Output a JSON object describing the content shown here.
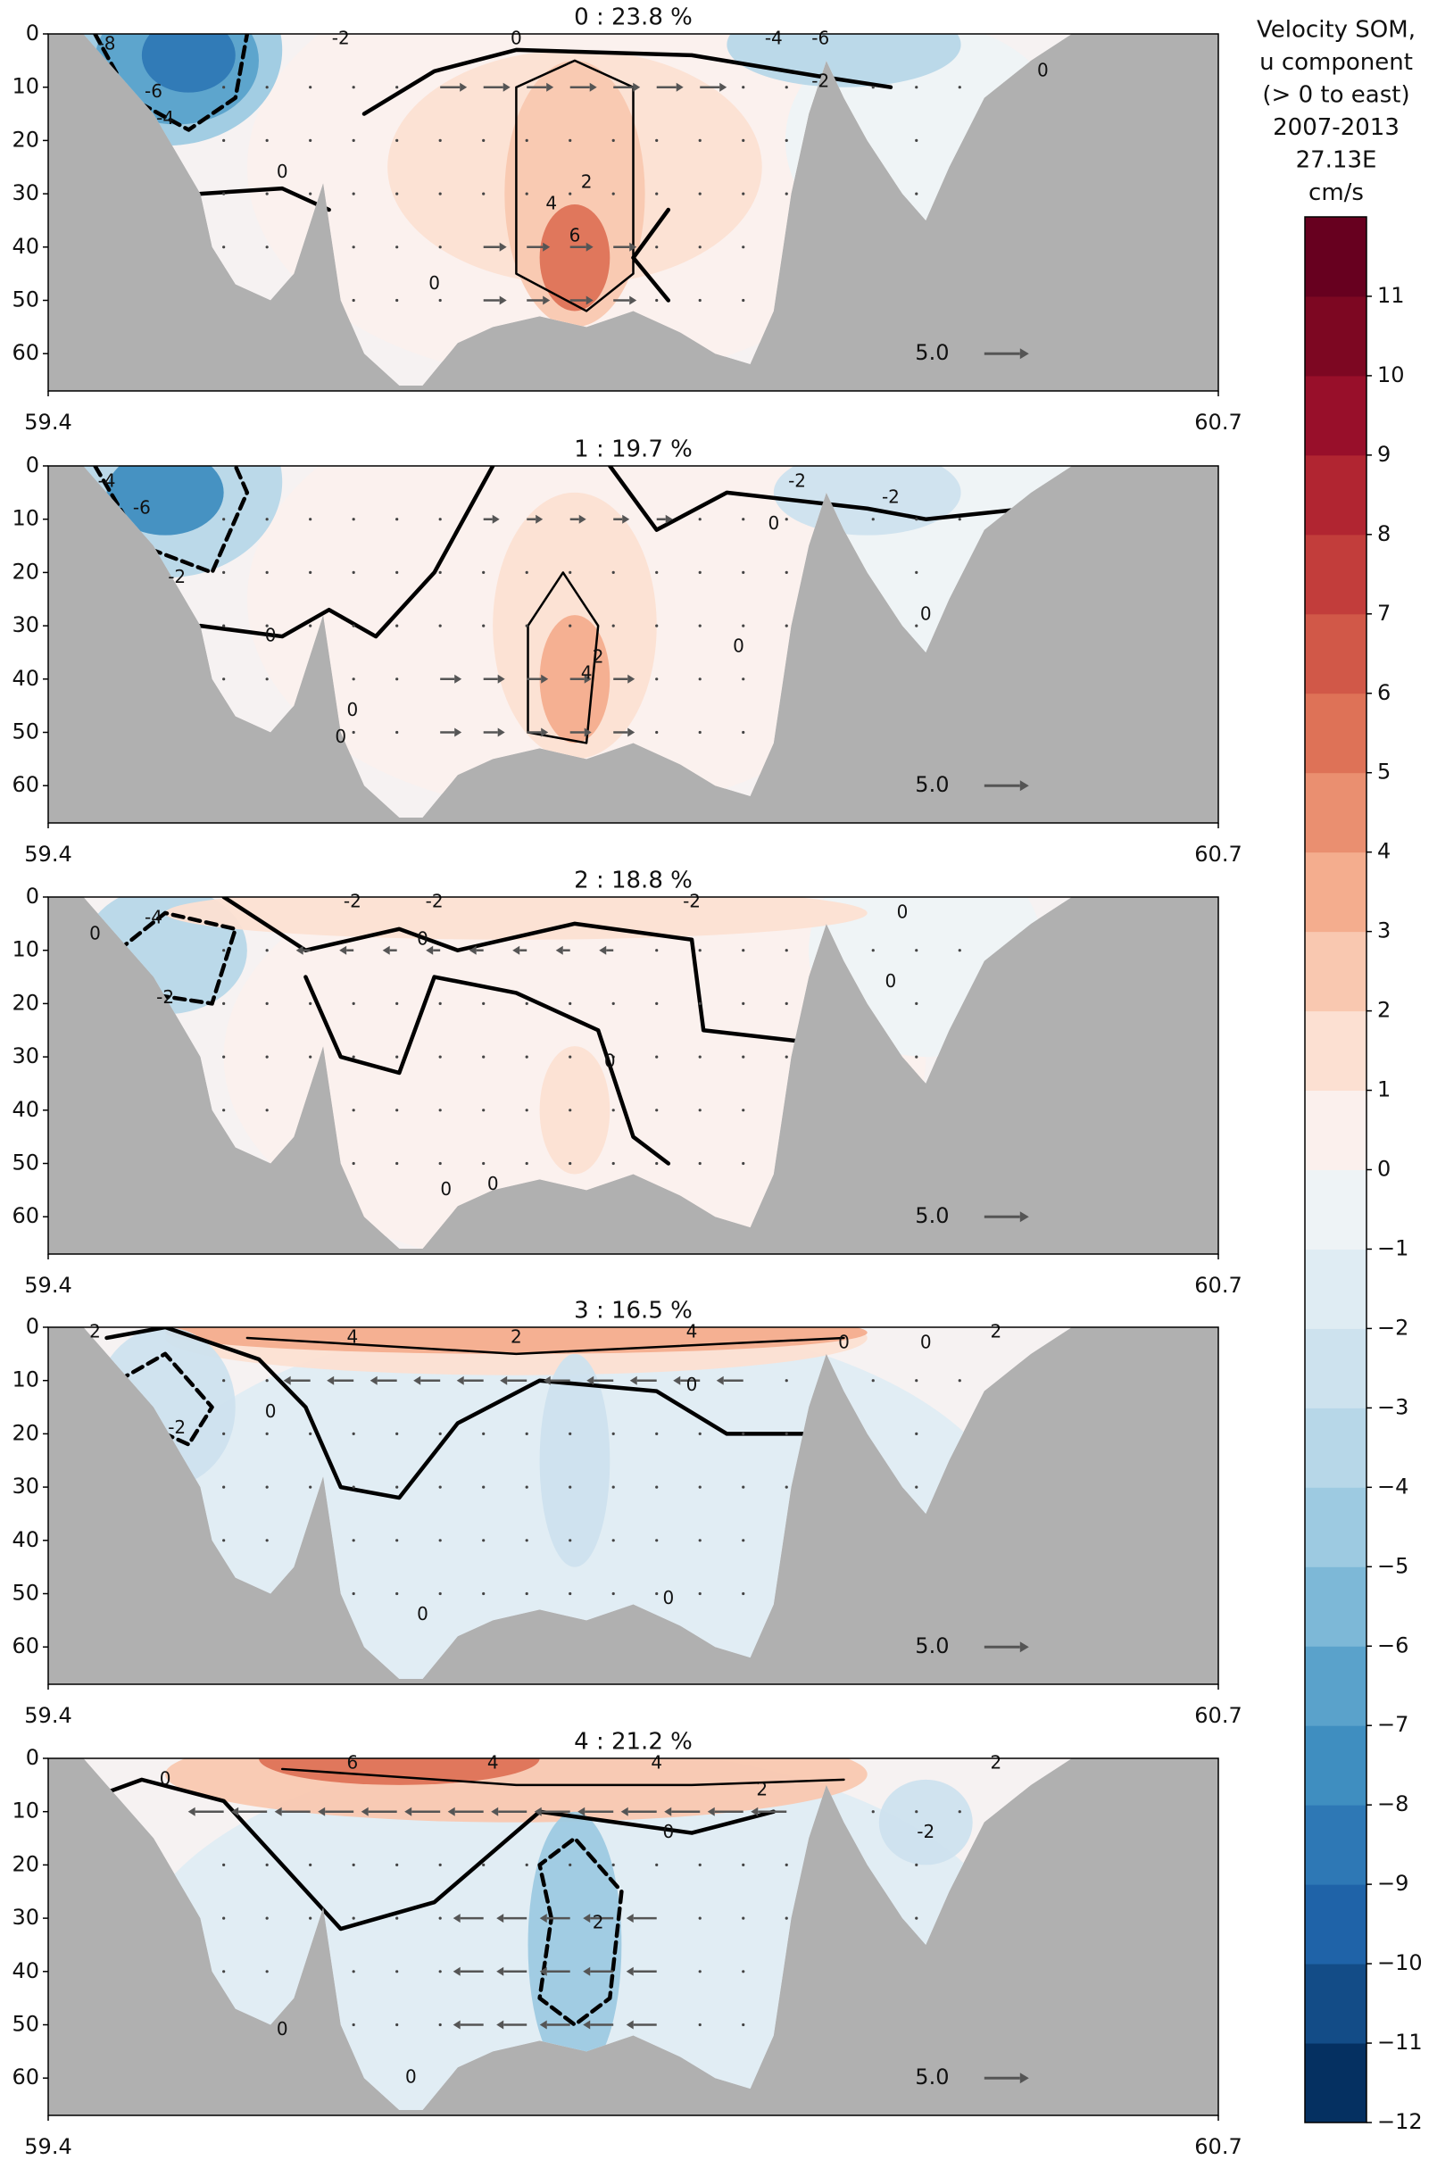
{
  "chart_data": [
    {
      "type": "contour",
      "title": "0 : 23.8 %",
      "xlim": [
        59.4,
        60.7
      ],
      "xticks": [
        59.4,
        60.7
      ],
      "ylim": [
        67,
        0
      ],
      "yticks": [
        0,
        10,
        20,
        30,
        40,
        50,
        60
      ],
      "contour_labels": [
        -8,
        -6,
        -4,
        -2,
        0,
        -4,
        -6,
        -2,
        0,
        2,
        4,
        6,
        0,
        0
      ],
      "reference_arrow": {
        "value": 5,
        "label": "5.0"
      }
    },
    {
      "type": "contour",
      "title": "1 : 19.7 %",
      "xlim": [
        59.4,
        60.7
      ],
      "xticks": [
        59.4,
        60.7
      ],
      "ylim": [
        67,
        0
      ],
      "yticks": [
        0,
        10,
        20,
        30,
        40,
        50,
        60
      ],
      "contour_labels": [
        -4,
        -6,
        -2,
        0,
        -2,
        -2,
        0,
        0,
        2,
        4,
        0,
        0,
        0
      ],
      "reference_arrow": {
        "value": 5,
        "label": "5.0"
      }
    },
    {
      "type": "contour",
      "title": "2 : 18.8 %",
      "xlim": [
        59.4,
        60.7
      ],
      "xticks": [
        59.4,
        60.7
      ],
      "ylim": [
        67,
        0
      ],
      "yticks": [
        0,
        10,
        20,
        30,
        40,
        50,
        60
      ],
      "contour_labels": [
        0,
        -4,
        -2,
        -2,
        -2,
        -2,
        0,
        0,
        0,
        0,
        0,
        0
      ],
      "reference_arrow": {
        "value": 5,
        "label": "5.0"
      }
    },
    {
      "type": "contour",
      "title": "3 : 16.5 %",
      "xlim": [
        59.4,
        60.7
      ],
      "xticks": [
        59.4,
        60.7
      ],
      "ylim": [
        67,
        0
      ],
      "yticks": [
        0,
        10,
        20,
        30,
        40,
        50,
        60
      ],
      "contour_labels": [
        2,
        4,
        2,
        4,
        0,
        -2,
        0,
        0,
        0,
        2,
        0,
        0
      ],
      "reference_arrow": {
        "value": 5,
        "label": "5.0"
      }
    },
    {
      "type": "contour",
      "title": "4 : 21.2 %",
      "xlim": [
        59.4,
        60.7
      ],
      "xticks": [
        59.4,
        60.7
      ],
      "ylim": [
        67,
        0
      ],
      "yticks": [
        0,
        10,
        20,
        30,
        40,
        50,
        60
      ],
      "contour_labels": [
        0,
        6,
        4,
        4,
        2,
        0,
        2,
        -2,
        2,
        0,
        0
      ],
      "reference_arrow": {
        "value": 5,
        "label": "5.0"
      }
    },
    {
      "type": "colorbar",
      "title": [
        "Velocity SOM,",
        "u component",
        "(> 0 to east)",
        "2007-2013",
        "27.13E",
        "cm/s"
      ],
      "ylim": [
        -12,
        12
      ],
      "yticks": [
        {
          "value": -12,
          "label": "−12"
        },
        {
          "value": -11,
          "label": "−11"
        },
        {
          "value": -10,
          "label": "−10"
        },
        {
          "value": -9,
          "label": "−9"
        },
        {
          "value": -8,
          "label": "−8"
        },
        {
          "value": -7,
          "label": "−7"
        },
        {
          "value": -6,
          "label": "−6"
        },
        {
          "value": -5,
          "label": "−5"
        },
        {
          "value": -4,
          "label": "−4"
        },
        {
          "value": -3,
          "label": "−3"
        },
        {
          "value": -2,
          "label": "−2"
        },
        {
          "value": -1,
          "label": "−1"
        },
        0,
        1,
        2,
        3,
        4,
        5,
        6,
        7,
        8,
        9,
        10,
        11
      ],
      "colors": [
        "#053061",
        "#134c87",
        "#1f63a8",
        "#2e78b5",
        "#3f8ec0",
        "#5aa2cb",
        "#7db8d7",
        "#9dcae1",
        "#b7d7e8",
        "#cde2ee",
        "#dfecf3",
        "#eef3f6",
        "#fbf0ed",
        "#fce0d2",
        "#f9c8b0",
        "#f4ad8e",
        "#ea8f70",
        "#de7257",
        "#d15848",
        "#c23d3b",
        "#b12531",
        "#980f2a",
        "#7d0722",
        "#67001f"
      ]
    }
  ]
}
